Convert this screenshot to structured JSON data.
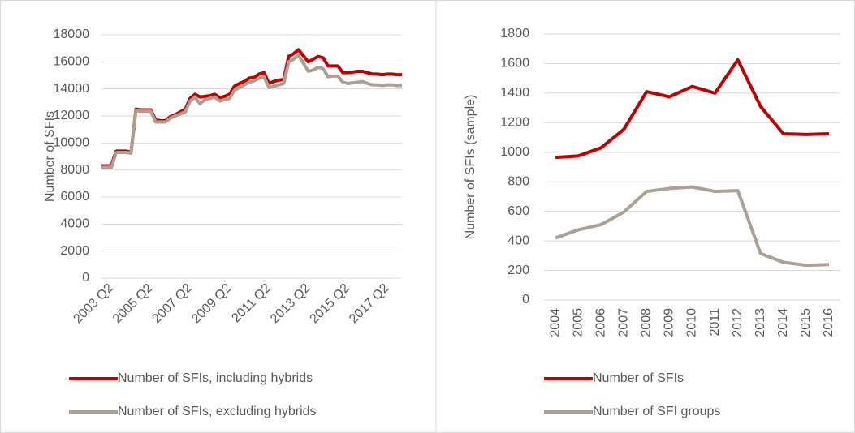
{
  "chart_data": [
    {
      "type": "line",
      "y_label": "Number of SFIs",
      "categories": [
        null,
        "2003 Q2",
        null,
        null,
        null,
        null,
        null,
        null,
        null,
        "2005 Q2",
        null,
        null,
        null,
        null,
        null,
        null,
        null,
        "2007 Q2",
        null,
        null,
        null,
        null,
        null,
        null,
        null,
        "2009 Q2",
        null,
        null,
        null,
        null,
        null,
        null,
        null,
        "2011 Q2",
        null,
        null,
        null,
        null,
        null,
        null,
        null,
        "2013 Q2",
        null,
        null,
        null,
        null,
        null,
        null,
        null,
        "2015 Q2",
        null,
        null,
        null,
        null,
        null,
        null,
        null,
        "2017 Q2",
        null,
        null,
        null,
        null
      ],
      "series": [
        {
          "name": "Number of SFIs, including hybrids",
          "color": "#c00000",
          "values": [
            8300,
            8300,
            8350,
            9400,
            9400,
            9400,
            9300,
            12500,
            12450,
            12450,
            12450,
            11700,
            11650,
            11650,
            11950,
            12100,
            12300,
            12500,
            13300,
            13600,
            13400,
            13450,
            13500,
            13600,
            13350,
            13450,
            13600,
            14200,
            14400,
            14550,
            14800,
            14850,
            15100,
            15200,
            14400,
            14550,
            14650,
            14700,
            16400,
            16600,
            16900,
            16450,
            16000,
            16200,
            16400,
            16300,
            15700,
            15700,
            15700,
            15200,
            15200,
            15250,
            15300,
            15300,
            15200,
            15100,
            15100,
            15050,
            15100,
            15100,
            15050,
            15050
          ]
        },
        {
          "name": "Number of SFIs, excluding hybrids",
          "color": "#aaa192",
          "values": [
            8200,
            8200,
            8200,
            9300,
            9300,
            9300,
            9250,
            12400,
            12350,
            12350,
            12350,
            11550,
            11550,
            11550,
            11850,
            12000,
            12150,
            12300,
            13100,
            13400,
            12900,
            13200,
            13300,
            13400,
            13100,
            13200,
            13300,
            13900,
            14100,
            14300,
            14500,
            14600,
            14800,
            14900,
            14100,
            14200,
            14300,
            14400,
            16000,
            16200,
            16500,
            15900,
            15300,
            15400,
            15600,
            15500,
            14900,
            14950,
            14950,
            14500,
            14400,
            14450,
            14500,
            14550,
            14400,
            14300,
            14300,
            14250,
            14300,
            14300,
            14250,
            14250
          ]
        }
      ],
      "ylim": [
        0,
        18000
      ],
      "yticks": [
        0,
        2000,
        4000,
        6000,
        8000,
        10000,
        12000,
        14000,
        16000,
        18000
      ],
      "grid": true,
      "legend": "bottom"
    },
    {
      "type": "line",
      "y_label": "Number of SFIs (sample)",
      "categories": [
        "2004",
        "2005",
        "2006",
        "2007",
        "2008",
        "2009",
        "2010",
        "2011",
        "2012",
        "2013",
        "2014",
        "2015",
        "2016"
      ],
      "series": [
        {
          "name": "Number of SFIs",
          "color": "#c00000",
          "values": [
            965,
            975,
            1030,
            1155,
            1410,
            1375,
            1445,
            1400,
            1625,
            1310,
            1125,
            1120,
            1125
          ]
        },
        {
          "name": "Number of SFI groups",
          "color": "#aaa192",
          "values": [
            420,
            475,
            510,
            595,
            735,
            755,
            765,
            735,
            740,
            315,
            255,
            235,
            240
          ]
        }
      ],
      "ylim": [
        0,
        1800
      ],
      "yticks": [
        0,
        200,
        400,
        600,
        800,
        1000,
        1200,
        1400,
        1600,
        1800
      ],
      "grid": true,
      "legend": "bottom"
    }
  ]
}
